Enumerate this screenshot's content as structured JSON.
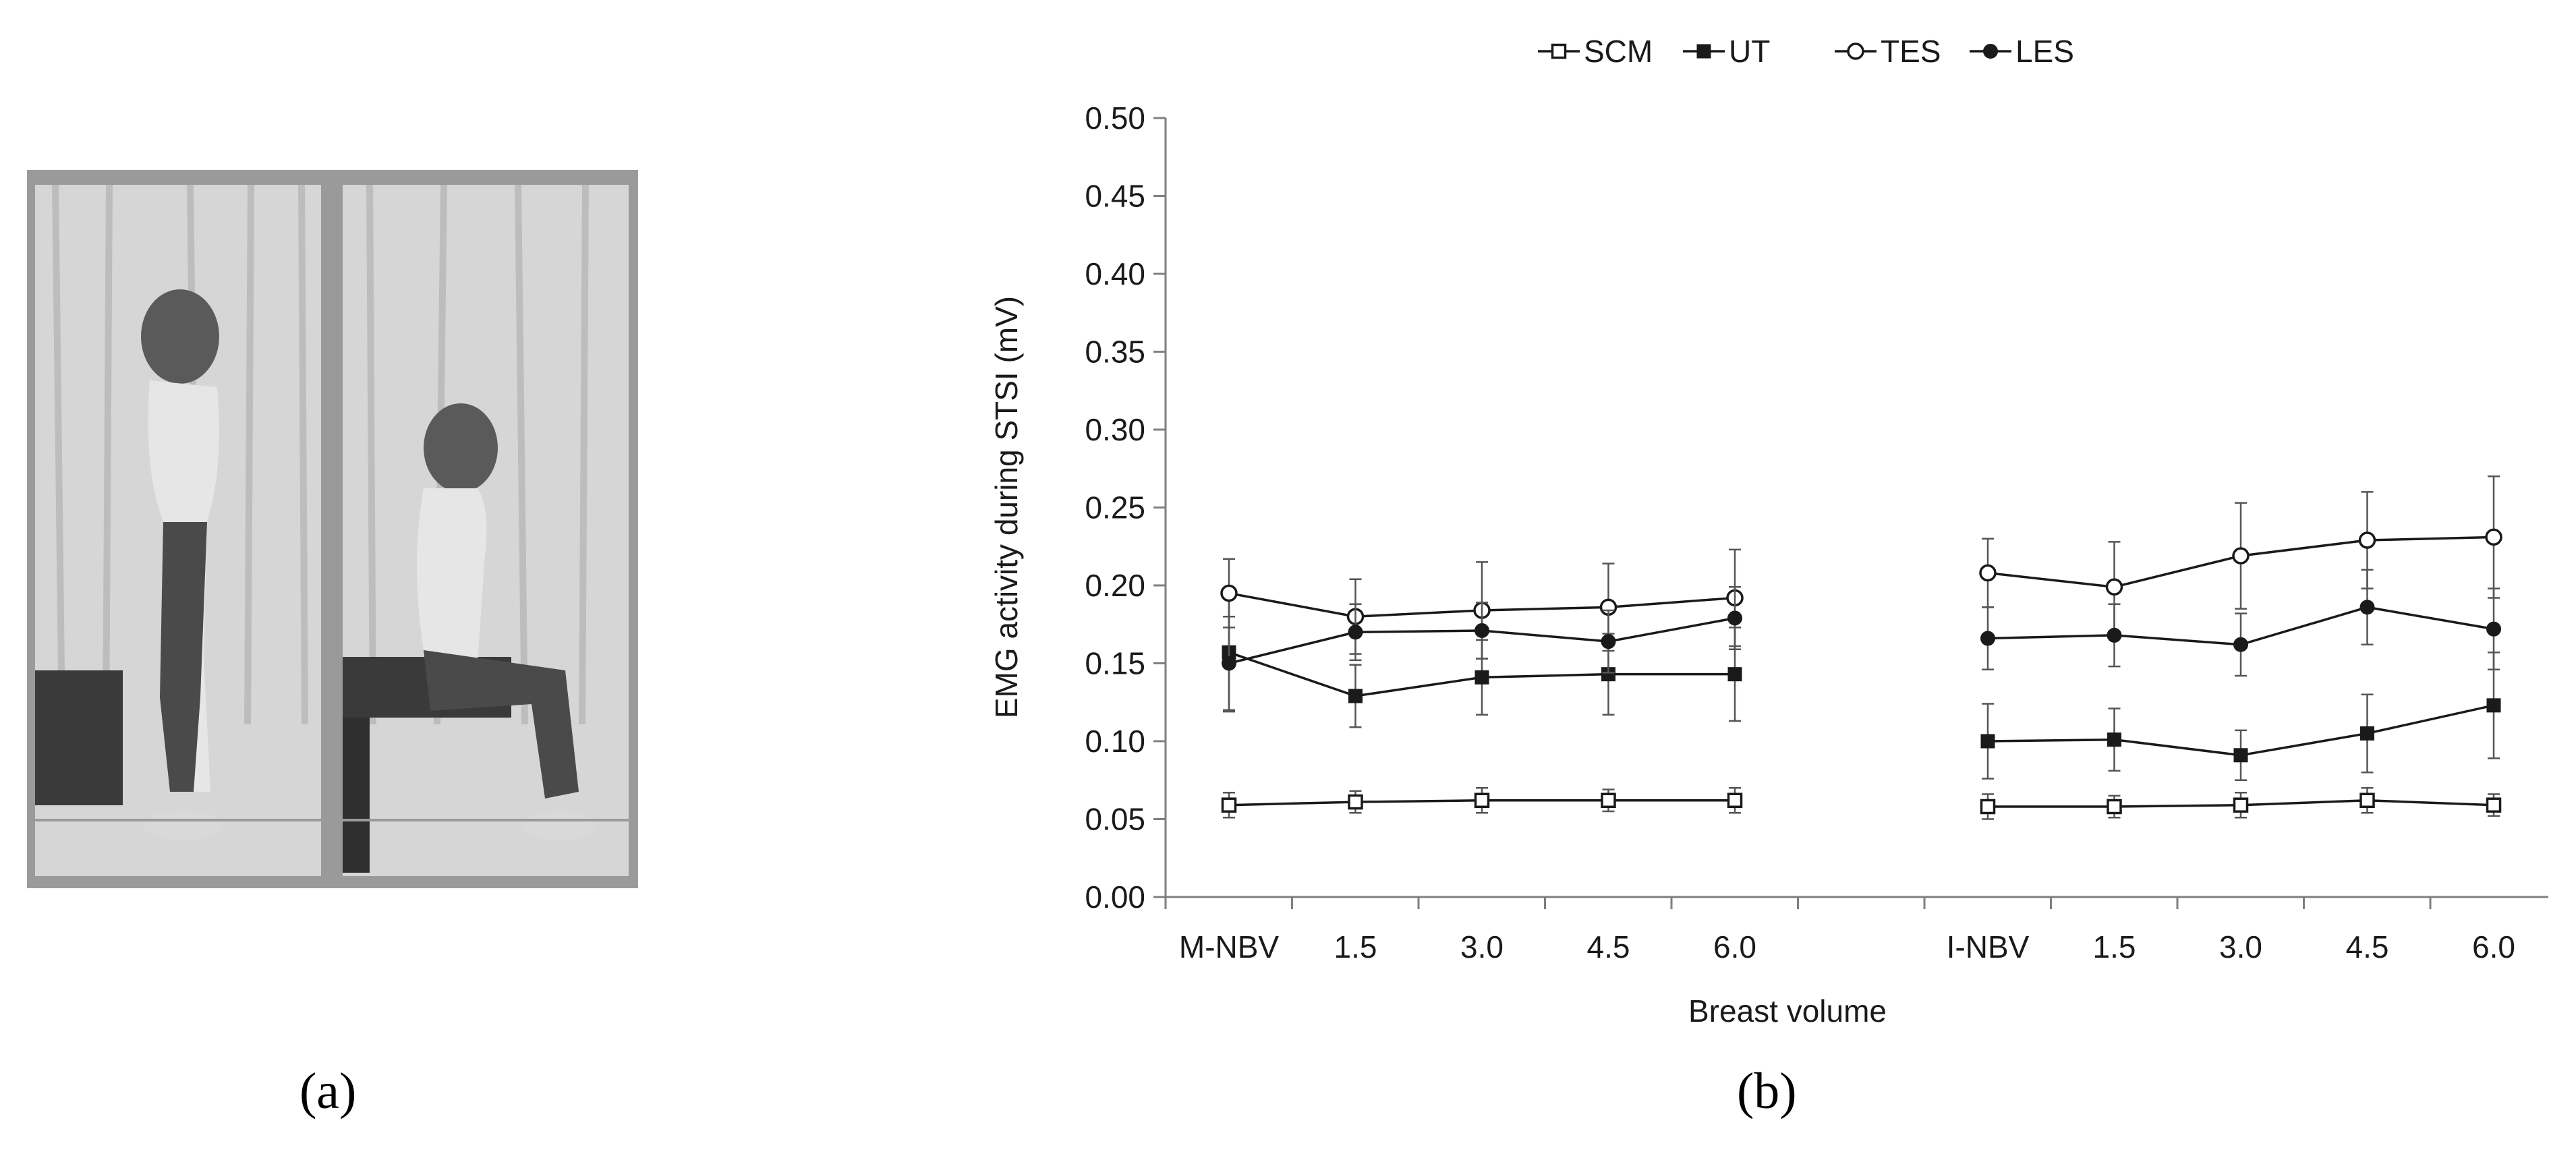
{
  "figure": {
    "panel_a_label": "(a)",
    "panel_b_label": "(b)",
    "panel_a_description": ""
  },
  "chart_data": {
    "type": "line",
    "title": "",
    "xlabel": "Breast volume",
    "ylabel": "EMG activity during STSI (mV)",
    "ylim": [
      0,
      0.5
    ],
    "yticks": [
      "0.00",
      "0.05",
      "0.10",
      "0.15",
      "0.20",
      "0.25",
      "0.30",
      "0.35",
      "0.40",
      "0.45",
      "0.50"
    ],
    "grid": false,
    "legend_position": "top-center",
    "groups": [
      {
        "name": "M-NBV",
        "categories": [
          "M-NBV",
          "1.5",
          "3.0",
          "4.5",
          "6.0"
        ]
      },
      {
        "name": "I-NBV",
        "categories": [
          "I-NBV",
          "1.5",
          "3.0",
          "4.5",
          "6.0"
        ]
      }
    ],
    "series": [
      {
        "name": "SCM",
        "marker": "open-square",
        "groups": [
          {
            "values": [
              0.059,
              0.061,
              0.062,
              0.062,
              0.062
            ],
            "errors": [
              0.008,
              0.007,
              0.008,
              0.007,
              0.008
            ]
          },
          {
            "values": [
              0.058,
              0.058,
              0.059,
              0.062,
              0.059
            ],
            "errors": [
              0.008,
              0.007,
              0.008,
              0.008,
              0.007
            ]
          }
        ]
      },
      {
        "name": "UT",
        "marker": "filled-square",
        "groups": [
          {
            "values": [
              0.157,
              0.129,
              0.141,
              0.143,
              0.143
            ],
            "errors": [
              0.038,
              0.02,
              0.024,
              0.026,
              0.03
            ]
          },
          {
            "values": [
              0.1,
              0.101,
              0.091,
              0.105,
              0.123
            ],
            "errors": [
              0.024,
              0.02,
              0.016,
              0.025,
              0.034
            ]
          }
        ]
      },
      {
        "name": "TES",
        "marker": "open-circle",
        "groups": [
          {
            "values": [
              0.195,
              0.18,
              0.184,
              0.186,
              0.192
            ],
            "errors": [
              0.022,
              0.024,
              0.031,
              0.028,
              0.031
            ]
          },
          {
            "values": [
              0.208,
              0.199,
              0.219,
              0.229,
              0.231
            ],
            "errors": [
              0.022,
              0.029,
              0.034,
              0.031,
              0.039
            ]
          }
        ]
      },
      {
        "name": "LES",
        "marker": "filled-circle",
        "groups": [
          {
            "values": [
              0.15,
              0.17,
              0.171,
              0.164,
              0.179
            ],
            "errors": [
              0.03,
              0.018,
              0.018,
              0.02,
              0.02
            ]
          },
          {
            "values": [
              0.166,
              0.168,
              0.162,
              0.186,
              0.172
            ],
            "errors": [
              0.02,
              0.02,
              0.02,
              0.024,
              0.026
            ]
          }
        ]
      }
    ]
  }
}
